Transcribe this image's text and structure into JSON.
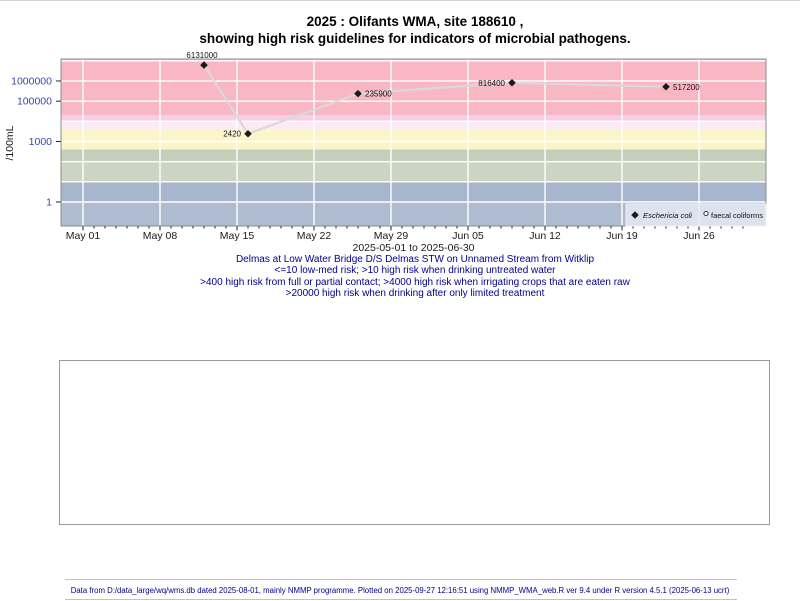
{
  "title": {
    "line1": "2025 : Olifants WMA, site 188610 ,",
    "line2": "showing high risk guidelines for indicators of microbial pathogens."
  },
  "chart_data": {
    "type": "line",
    "title": "2025 : Olifants WMA, site 188610 , showing high risk guidelines for indicators of microbial pathogens.",
    "xlabel": "2025-05-01 to 2025-06-30",
    "ylabel": "/100mL",
    "y_scale": "log10",
    "ylim": [
      0.065,
      12300000
    ],
    "x_range": [
      "2025-05-01",
      "2025-06-30"
    ],
    "grid": true,
    "y_ticks": [
      {
        "value": 1000000,
        "label": "1000000"
      },
      {
        "value": 100000,
        "label": "100000"
      },
      {
        "value": 1000,
        "label": "1000"
      },
      {
        "value": 1,
        "label": "1"
      }
    ],
    "x_ticks": [
      {
        "day": 0,
        "label": "May 01"
      },
      {
        "day": 7,
        "label": "May 08"
      },
      {
        "day": 14,
        "label": "May 15"
      },
      {
        "day": 21,
        "label": "May 22"
      },
      {
        "day": 28,
        "label": "May 29"
      },
      {
        "day": 35,
        "label": "Jun 05"
      },
      {
        "day": 42,
        "label": "Jun 12"
      },
      {
        "day": 49,
        "label": "Jun 19"
      },
      {
        "day": 56,
        "label": "Jun 26"
      }
    ],
    "series": [
      {
        "name": "Eschericia coli",
        "marker": "filled-diamond",
        "points": [
          {
            "date": "2025-05-12",
            "day": 11,
            "value": 6131000,
            "label": "6131000",
            "label_side": "above"
          },
          {
            "date": "2025-05-16",
            "day": 15,
            "value": 2420,
            "label": "2420",
            "label_side": "left"
          },
          {
            "date": "2025-05-26",
            "day": 25,
            "value": 235900,
            "label": "235900",
            "label_side": "right"
          },
          {
            "date": "2025-06-09",
            "day": 39,
            "value": 816400,
            "label": "816400",
            "label_side": "left"
          },
          {
            "date": "2025-06-23",
            "day": 53,
            "value": 517200,
            "label": "517200",
            "label_side": "right"
          }
        ]
      },
      {
        "name": "faecal coliforms",
        "marker": "open-circle",
        "points": []
      }
    ],
    "risk_bands": [
      {
        "lo": 0.065,
        "hi": 1,
        "color": "#aebbd1",
        "meaning": "<=10 low-med risk"
      },
      {
        "lo": 1,
        "hi": 10,
        "color": "#a7b5cd",
        "meaning": "<=10 low-med risk"
      },
      {
        "lo": 10,
        "hi": 100,
        "color": "#ccd5c3",
        "meaning": ">10 high risk when drinking untreated water"
      },
      {
        "lo": 100,
        "hi": 400,
        "color": "#c4ceba",
        "meaning": ">10 high risk when drinking untreated water"
      },
      {
        "lo": 400,
        "hi": 4000,
        "color": "#faf6ca",
        "meaning": ">400 high risk from full or partial contact"
      },
      {
        "lo": 4000,
        "hi": 10000,
        "color": "#fcebf6",
        "meaning": ">4000 high risk when irrigating crops that are eaten raw"
      },
      {
        "lo": 10000,
        "hi": 20000,
        "color": "#f6cfe7",
        "meaning": ">4000 high risk when irrigating crops that are eaten raw"
      },
      {
        "lo": 20000,
        "hi": 12300000,
        "color": "#f9b7c3",
        "meaning": ">20000 high risk when drinking after only limited treatment"
      }
    ],
    "legend": {
      "position": "bottom-right",
      "items": [
        {
          "label": "Eschericia coli",
          "marker": "filled-diamond",
          "italic": true
        },
        {
          "label": "faecal coliforms",
          "marker": "open-circle",
          "italic": false
        }
      ]
    },
    "colors": {
      "line": "#d9d9d9",
      "marker": "#1a1a1a",
      "grid": "#ffffff",
      "plot_border": "#8c8c8c",
      "tick": "#2a2a2a",
      "x_tick_label": "#1a1a1a",
      "y_tick_label": "#3a47a8",
      "axis_title": "#1a1a1a",
      "point_label": "#111111",
      "legend_bg": "#dce3ee",
      "legend_border": "#f2f2f2"
    }
  },
  "captions": {
    "lines": [
      "Delmas at Low Water Bridge D/S Delmas STW on Unnamed Stream from Witklip",
      "<=10 low-med risk; >10 high risk when drinking untreated water",
      ">400 high risk from full or partial contact; >4000 high risk when irrigating crops that are eaten raw",
      ">20000 high risk when drinking after only limited treatment"
    ]
  },
  "footer": {
    "text": "Data from D:/data_large/wq/wms.db dated 2025-08-01, mainly NMMP programme. Plotted on 2025-09-27 12:16:51 using NMMP_WMA_web.R ver 9.4 under R version 4.5.1 (2025-06-13 ucrt)"
  }
}
